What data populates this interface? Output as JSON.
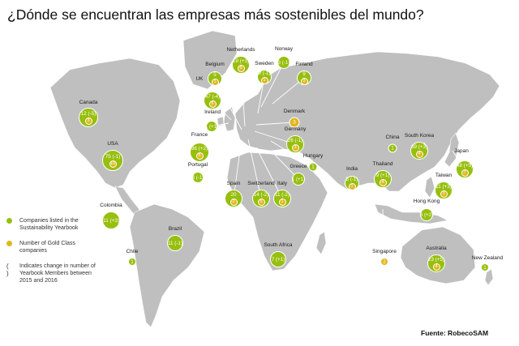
{
  "title": "¿Dónde se encuentran las empresas más sostenibles del mundo?",
  "source": "Fuente: RobecoSAM",
  "colors": {
    "green": "#97bf0d",
    "gold": "#e0b71f",
    "land": "#bfbfbf"
  },
  "legend": {
    "companies": "Companies listed in the Sustainability Yearbook",
    "gold": "Number of Gold Class companies",
    "paren_symbol": "( )",
    "change": "Indicates change in number of Yearbook Members between 2015 and 2016"
  },
  "countries": [
    {
      "name": "Canada",
      "companies": "12 (-5)",
      "gold": "3"
    },
    {
      "name": "USA",
      "companies": "75 (-1)",
      "gold": "10"
    },
    {
      "name": "Colombia",
      "companies": "11 (+3)",
      "gold": ""
    },
    {
      "name": "Brazil",
      "companies": "11 (-1)",
      "gold": ""
    },
    {
      "name": "Chile",
      "companies": "1",
      "gold": ""
    },
    {
      "name": "UK",
      "companies": "47 (-4)",
      "gold": "6"
    },
    {
      "name": "Ireland",
      "companies": "1 (+1)",
      "gold": ""
    },
    {
      "name": "France",
      "companies": "36 (+2)",
      "gold": "6"
    },
    {
      "name": "Portugal",
      "companies": "3 (-1)",
      "gold": ""
    },
    {
      "name": "Spain",
      "companies": "20",
      "gold": "2"
    },
    {
      "name": "Belgium",
      "companies": "5",
      "gold": "1"
    },
    {
      "name": "Netherlands",
      "companies": "19 (+3)",
      "gold": "6"
    },
    {
      "name": "Sweden",
      "companies": "9 (-1)",
      "gold": "1"
    },
    {
      "name": "Norway",
      "companies": "3 (-1)",
      "gold": ""
    },
    {
      "name": "Finland",
      "companies": "9",
      "gold": "3"
    },
    {
      "name": "Denmark",
      "companies": "",
      "gold": "3"
    },
    {
      "name": "Germany",
      "companies": "26 (-1)",
      "gold": "3"
    },
    {
      "name": "Switzerland",
      "companies": "14 (-2)",
      "gold": "5"
    },
    {
      "name": "Italy",
      "companies": "11 (-2)",
      "gold": "1"
    },
    {
      "name": "Hungary",
      "companies": "1",
      "gold": ""
    },
    {
      "name": "Greece",
      "companies": "1 (+1)",
      "gold": ""
    },
    {
      "name": "South Africa",
      "companies": "7 (+1)",
      "gold": ""
    },
    {
      "name": "India",
      "companies": "5 (-1)",
      "gold": "1"
    },
    {
      "name": "Thailand",
      "companies": "9 (+1)",
      "gold": "4"
    },
    {
      "name": "China",
      "companies": "1",
      "gold": ""
    },
    {
      "name": "South Korea",
      "companies": "39 (+3)",
      "gold": "4"
    },
    {
      "name": "Japan",
      "companies": "48 (+9)",
      "gold": "7"
    },
    {
      "name": "Taiwan",
      "companies": "11 (+3)",
      "gold": "3"
    },
    {
      "name": "Hong Kong",
      "companies": "3 (+2)",
      "gold": ""
    },
    {
      "name": "Singapore",
      "companies": "",
      "gold": "2"
    },
    {
      "name": "Australia",
      "companies": "23 (+5)",
      "gold": "4"
    },
    {
      "name": "New Zealand",
      "companies": "1",
      "gold": ""
    }
  ]
}
